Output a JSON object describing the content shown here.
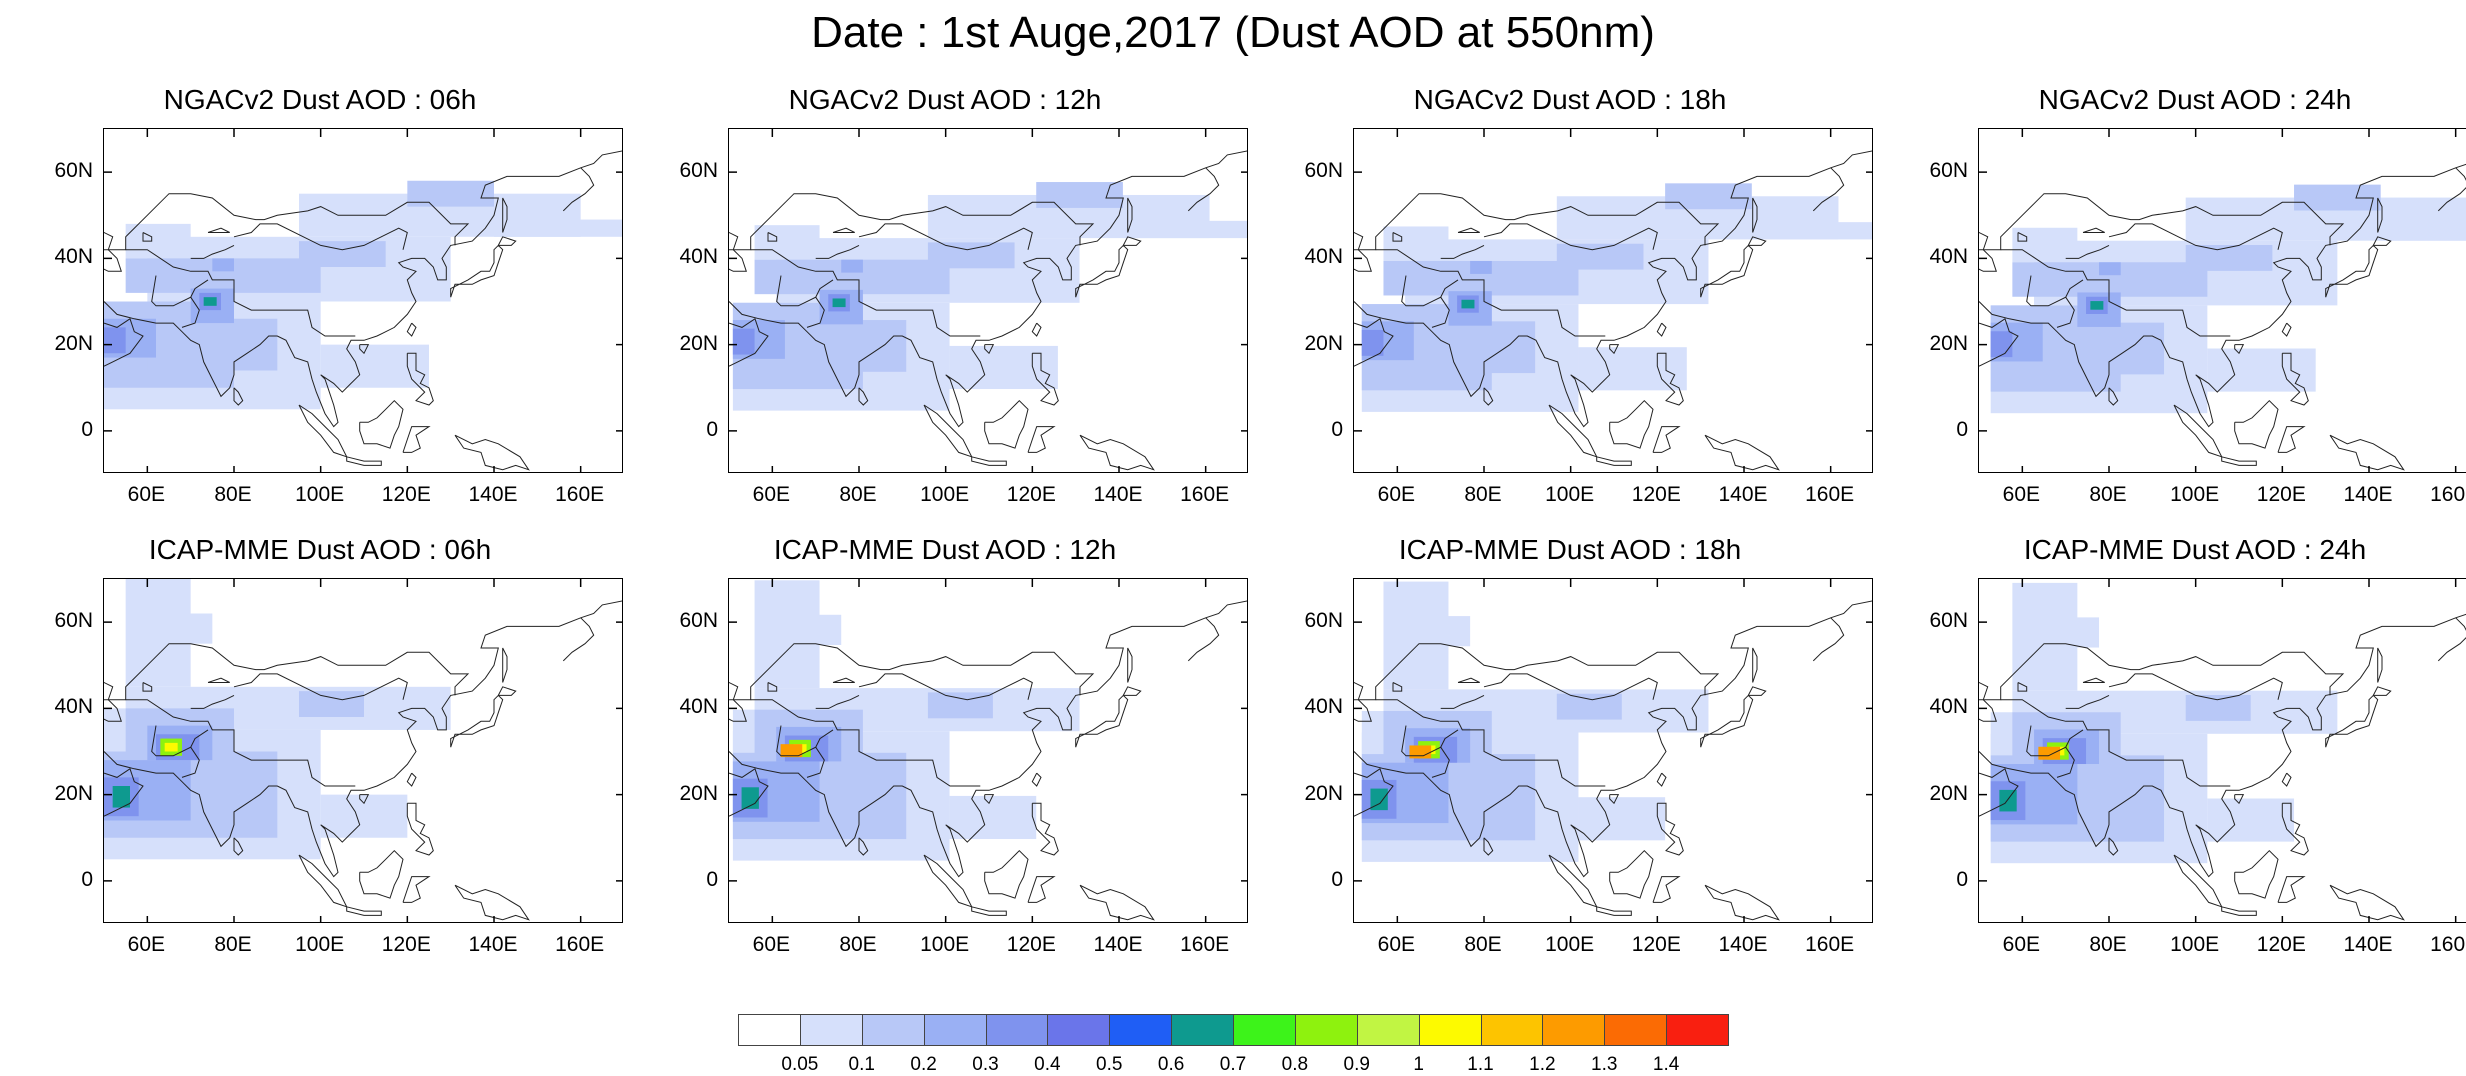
{
  "title": "Date : 1st Auge,2017 (Dust AOD at 550nm)",
  "axis": {
    "lat_ticks": [
      "60N",
      "40N",
      "20N",
      "0"
    ],
    "lon_ticks": [
      "60E",
      "80E",
      "100E",
      "120E",
      "140E",
      "160E"
    ]
  },
  "panels": [
    {
      "id": "ngac-06",
      "title": "NGACv2 Dust AOD : 06h",
      "model": "ngac",
      "hour": 6
    },
    {
      "id": "ngac-12",
      "title": "NGACv2 Dust AOD : 12h",
      "model": "ngac",
      "hour": 12
    },
    {
      "id": "ngac-18",
      "title": "NGACv2 Dust AOD : 18h",
      "model": "ngac",
      "hour": 18
    },
    {
      "id": "ngac-24",
      "title": "NGACv2 Dust AOD : 24h",
      "model": "ngac",
      "hour": 24
    },
    {
      "id": "icap-06",
      "title": "ICAP-MME Dust AOD : 06h",
      "model": "icap",
      "hour": 6
    },
    {
      "id": "icap-12",
      "title": "ICAP-MME Dust AOD : 12h",
      "model": "icap",
      "hour": 12
    },
    {
      "id": "icap-18",
      "title": "ICAP-MME Dust AOD : 18h",
      "model": "icap",
      "hour": 18
    },
    {
      "id": "icap-24",
      "title": "ICAP-MME Dust AOD : 24h",
      "model": "icap",
      "hour": 24
    }
  ],
  "colorbar": {
    "labels": [
      "0.05",
      "0.1",
      "0.2",
      "0.3",
      "0.4",
      "0.5",
      "0.6",
      "0.7",
      "0.8",
      "0.9",
      "1",
      "1.1",
      "1.2",
      "1.3",
      "1.4"
    ],
    "colors": [
      "#ffffff",
      "#d6e0fb",
      "#b8c8f7",
      "#9ab0f4",
      "#7f93ee",
      "#6a75ea",
      "#1f5ef5",
      "#0e9a8f",
      "#3df31a",
      "#8ef20e",
      "#c1f543",
      "#fdfa00",
      "#fdc400",
      "#fd9b00",
      "#fb6b04",
      "#f91f10"
    ]
  }
}
